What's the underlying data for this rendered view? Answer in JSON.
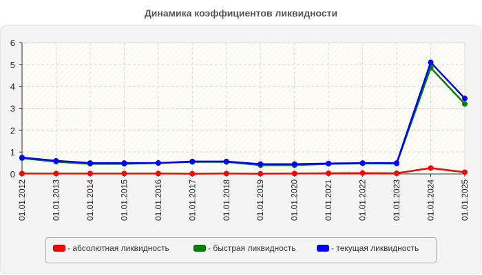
{
  "title": "Динамика коэффициентов ликвидности",
  "chart_data": {
    "type": "line",
    "title": "Динамика коэффициентов ликвидности",
    "xlabel": "",
    "ylabel": "",
    "ylim": [
      0,
      6
    ],
    "yticks": [
      0,
      1,
      2,
      3,
      4,
      5,
      6
    ],
    "grid": true,
    "legend_position": "bottom",
    "x": [
      "01.01.2012",
      "01.01.2013",
      "01.01.2014",
      "01.01.2015",
      "01.01.2016",
      "01.01.2017",
      "01.01.2018",
      "01.01.2019",
      "01.01.2020",
      "01.01.2021",
      "01.01.2022",
      "01.01.2023",
      "01.01.2024",
      "01.01.2025"
    ],
    "series": [
      {
        "name": "абсолютная ликвидность",
        "color": "#ff0000",
        "values": [
          0.02,
          0.02,
          0.02,
          0.02,
          0.02,
          0.01,
          0.02,
          0.01,
          0.02,
          0.03,
          0.04,
          0.03,
          0.27,
          0.08
        ]
      },
      {
        "name": "быстрая ликвидность",
        "color": "#008000",
        "values": [
          0.72,
          0.56,
          0.46,
          0.46,
          0.5,
          0.55,
          0.55,
          0.4,
          0.4,
          0.46,
          0.48,
          0.47,
          4.85,
          3.2
        ]
      },
      {
        "name": "текущая ликвидность",
        "color": "#0000ff",
        "values": [
          0.75,
          0.6,
          0.5,
          0.5,
          0.5,
          0.57,
          0.57,
          0.45,
          0.45,
          0.48,
          0.5,
          0.5,
          5.1,
          3.45
        ]
      }
    ]
  },
  "legend": [
    {
      "label": "- абсолютная ликвидность",
      "color": "#ff0000"
    },
    {
      "label": "- быстрая ликвидность",
      "color": "#008000"
    },
    {
      "label": "- текущая ликвидность",
      "color": "#0000ff"
    }
  ]
}
